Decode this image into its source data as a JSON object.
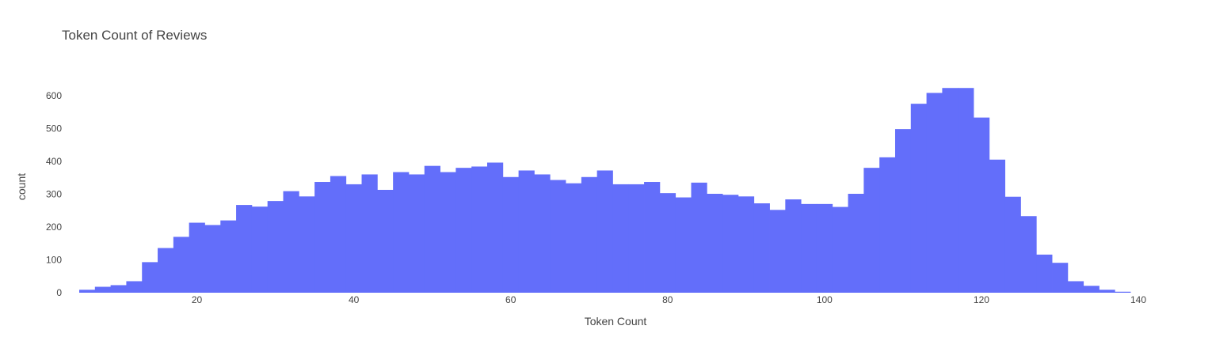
{
  "chart_data": {
    "type": "bar",
    "title": "Token Count of Reviews",
    "xlabel": "Token Count",
    "ylabel": "count",
    "bar_color": "#636efa",
    "background": "#ffffff",
    "grid": false,
    "legend": "none",
    "xlim": [
      5,
      140
    ],
    "ylim": [
      0,
      650
    ],
    "x_ticks": [
      20,
      40,
      60,
      80,
      100,
      120,
      140
    ],
    "y_ticks": [
      0,
      100,
      200,
      300,
      400,
      500,
      600
    ],
    "bin_width": 2,
    "bin_start": 5,
    "values": [
      9,
      18,
      23,
      35,
      93,
      136,
      170,
      213,
      206,
      220,
      267,
      262,
      279,
      309,
      293,
      337,
      355,
      330,
      360,
      313,
      367,
      360,
      386,
      367,
      380,
      384,
      396,
      352,
      372,
      360,
      343,
      333,
      352,
      372,
      330,
      330,
      337,
      303,
      290,
      335,
      301,
      298,
      293,
      272,
      252,
      284,
      270,
      270,
      261,
      301,
      380,
      412,
      498,
      575,
      608,
      623,
      623,
      533,
      405,
      292,
      233,
      116,
      91,
      35,
      21,
      9,
      3
    ]
  }
}
